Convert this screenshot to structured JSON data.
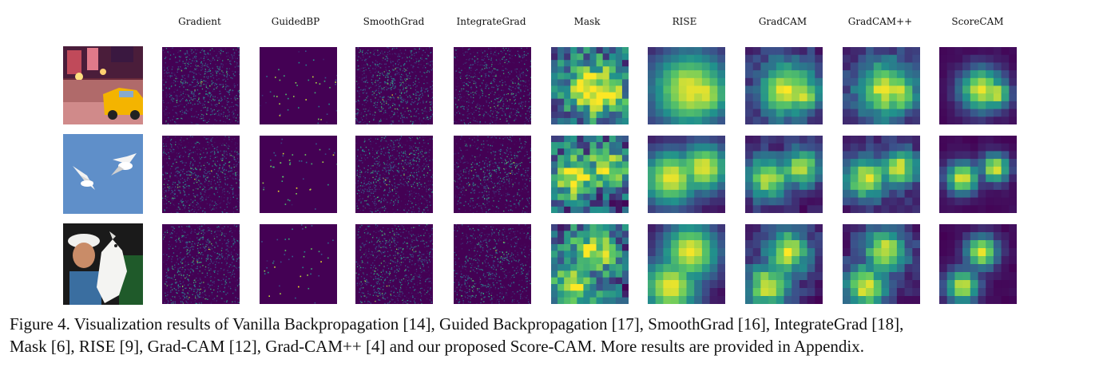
{
  "figure": {
    "column_headers": [
      "Gradient",
      "GuidedBP",
      "SmoothGrad",
      "IntegrateGrad",
      "Mask",
      "RISE",
      "GradCAM",
      "GradCAM++",
      "ScoreCAM"
    ],
    "rows": [
      {
        "input": "city street scene with yellow taxi cab"
      },
      {
        "input": "two birds flying against blue sky"
      },
      {
        "input": "child with white dog"
      }
    ],
    "caption_line1": "Figure 4. Visualization results of Vanilla Backpropagation [14], Guided Backpropagation [17], SmoothGrad [16], IntegrateGrad [18],",
    "caption_line2": "Mask [6], RISE [9], Grad-CAM [12], Grad-CAM++ [4] and our proposed Score-CAM. More results are provided in Appendix.",
    "colors": {
      "viridis_low": "#440154",
      "viridis_mid": "#21918c",
      "viridis_high": "#fde725"
    }
  }
}
